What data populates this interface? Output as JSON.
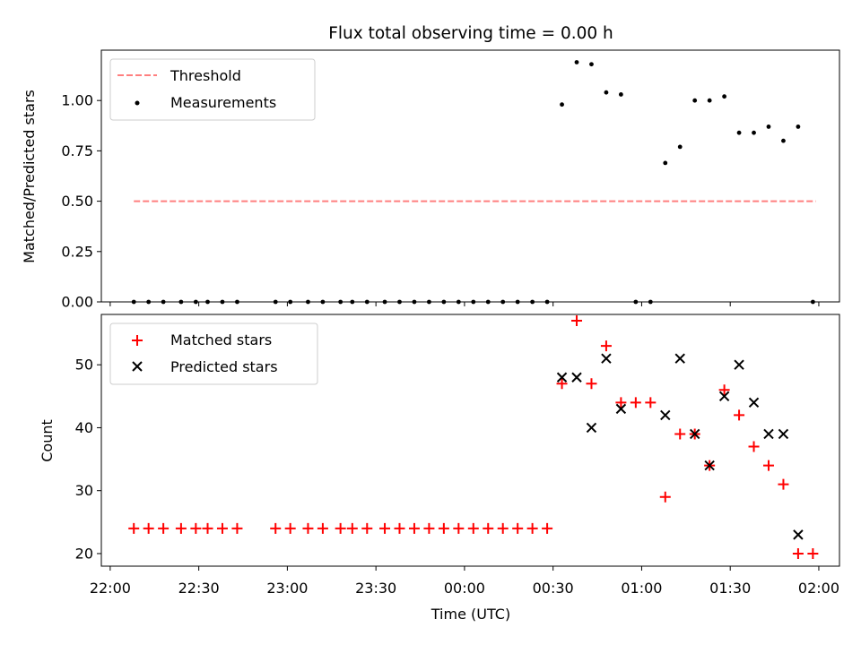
{
  "title": "Flux total observing time = 0.00 h",
  "chart_data": [
    {
      "type": "scatter",
      "panel": "top",
      "ylabel": "Matched/Predicted stars",
      "ylim": [
        0,
        1.25
      ],
      "yticks": [
        0.0,
        0.25,
        0.5,
        0.75,
        1.0
      ],
      "ytick_labels": [
        "0.00",
        "0.25",
        "0.50",
        "0.75",
        "1.00"
      ],
      "x_axis": "time_utc",
      "xlim": [
        "21:57",
        "02:07"
      ],
      "grid": false,
      "legend_position": "upper-left",
      "legend": [
        "Threshold",
        "Measurements"
      ],
      "threshold": {
        "name": "Threshold",
        "color": "#ff7f7f",
        "style": "dashed",
        "value": 0.5,
        "x": [
          "22:08",
          "01:59"
        ]
      },
      "series": [
        {
          "name": "Measurements",
          "marker": "dot",
          "color": "#000000",
          "x": [
            "22:08",
            "22:13",
            "22:18",
            "22:24",
            "22:29",
            "22:33",
            "22:38",
            "22:43",
            "22:56",
            "23:01",
            "23:07",
            "23:12",
            "23:18",
            "23:22",
            "23:27",
            "23:33",
            "23:38",
            "23:43",
            "23:48",
            "23:53",
            "23:58",
            "00:03",
            "00:08",
            "00:13",
            "00:18",
            "00:23",
            "00:28",
            "00:33",
            "00:38",
            "00:43",
            "00:48",
            "00:53",
            "00:58",
            "01:03",
            "01:08",
            "01:13",
            "01:18",
            "01:23",
            "01:28",
            "01:33",
            "01:38",
            "01:43",
            "01:48",
            "01:53",
            "01:58"
          ],
          "y": [
            0,
            0,
            0,
            0,
            0,
            0,
            0,
            0,
            0,
            0,
            0,
            0,
            0,
            0,
            0,
            0,
            0,
            0,
            0,
            0,
            0,
            0,
            0,
            0,
            0,
            0,
            0,
            0.98,
            1.19,
            1.18,
            1.04,
            1.03,
            0,
            0,
            0.69,
            0.77,
            1.0,
            1.0,
            1.02,
            0.84,
            0.84,
            0.87,
            0.8,
            0.87,
            0
          ]
        }
      ]
    },
    {
      "type": "scatter",
      "panel": "bottom",
      "xlabel": "Time (UTC)",
      "ylabel": "Count",
      "ylim": [
        18,
        58
      ],
      "yticks": [
        20,
        30,
        40,
        50
      ],
      "xlim": [
        "21:57",
        "02:07"
      ],
      "xticks": [
        "22:00",
        "22:30",
        "23:00",
        "23:30",
        "00:00",
        "00:30",
        "01:00",
        "01:30",
        "02:00"
      ],
      "grid": false,
      "legend_position": "upper-left",
      "legend": [
        "Matched stars",
        "Predicted stars"
      ],
      "series": [
        {
          "name": "Matched stars",
          "marker": "plus",
          "color": "#ff0000",
          "x": [
            "22:08",
            "22:13",
            "22:18",
            "22:24",
            "22:29",
            "22:33",
            "22:38",
            "22:43",
            "22:56",
            "23:01",
            "23:07",
            "23:12",
            "23:18",
            "23:22",
            "23:27",
            "23:33",
            "23:38",
            "23:43",
            "23:48",
            "23:53",
            "23:58",
            "00:03",
            "00:08",
            "00:13",
            "00:18",
            "00:23",
            "00:28",
            "00:33",
            "00:38",
            "00:43",
            "00:48",
            "00:53",
            "00:58",
            "01:03",
            "01:08",
            "01:13",
            "01:18",
            "01:23",
            "01:28",
            "01:33",
            "01:38",
            "01:43",
            "01:48",
            "01:53",
            "01:58"
          ],
          "y": [
            24,
            24,
            24,
            24,
            24,
            24,
            24,
            24,
            24,
            24,
            24,
            24,
            24,
            24,
            24,
            24,
            24,
            24,
            24,
            24,
            24,
            24,
            24,
            24,
            24,
            24,
            24,
            47,
            57,
            47,
            53,
            44,
            44,
            44,
            29,
            39,
            39,
            34,
            46,
            42,
            37,
            34,
            31,
            20,
            20
          ]
        },
        {
          "name": "Predicted stars",
          "marker": "x",
          "color": "#000000",
          "x": [
            "00:33",
            "00:38",
            "00:43",
            "00:48",
            "00:53",
            "01:08",
            "01:13",
            "01:18",
            "01:23",
            "01:28",
            "01:33",
            "01:38",
            "01:43",
            "01:48",
            "01:53"
          ],
          "y": [
            48,
            48,
            40,
            51,
            43,
            42,
            51,
            39,
            34,
            45,
            50,
            44,
            39,
            39,
            23
          ]
        }
      ]
    }
  ]
}
